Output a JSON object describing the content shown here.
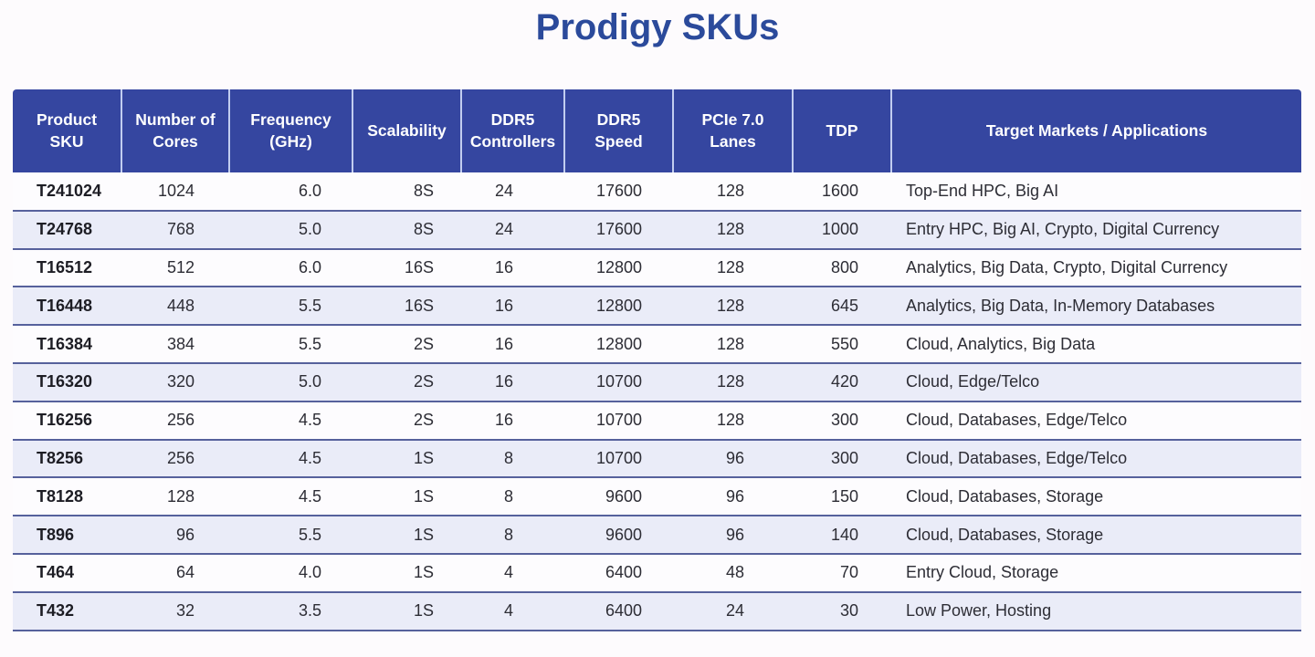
{
  "title": "Prodigy SKUs",
  "colors": {
    "title_text": "#2b4a9b",
    "header_bg": "#3546a0",
    "header_text": "#ffffff",
    "header_divider": "#c2cdf0",
    "row_white": "#fdfcfe",
    "row_alt": "#eaecf8",
    "row_border": "#56619c",
    "body_text": "#2d2d35"
  },
  "table": {
    "columns": [
      {
        "id": "product-sku",
        "label": "Product\nSKU"
      },
      {
        "id": "number-of-cores",
        "label": "Number of\nCores"
      },
      {
        "id": "frequency-ghz",
        "label": "Frequency\n(GHz)"
      },
      {
        "id": "scalability",
        "label": "Scalability"
      },
      {
        "id": "ddr5-controllers",
        "label": "DDR5\nControllers"
      },
      {
        "id": "ddr5-speed",
        "label": "DDR5\nSpeed"
      },
      {
        "id": "pcie-7-lanes",
        "label": "PCIe 7.0\nLanes"
      },
      {
        "id": "tdp",
        "label": "TDP"
      },
      {
        "id": "target-markets",
        "label": "Target Markets / Applications"
      }
    ],
    "rows": [
      [
        "T241024",
        "1024",
        "6.0",
        "8S",
        "24",
        "17600",
        "128",
        "1600",
        "Top-End HPC, Big AI"
      ],
      [
        "T24768",
        "768",
        "5.0",
        "8S",
        "24",
        "17600",
        "128",
        "1000",
        "Entry HPC, Big AI, Crypto, Digital Currency"
      ],
      [
        "T16512",
        "512",
        "6.0",
        "16S",
        "16",
        "12800",
        "128",
        "800",
        "Analytics, Big Data, Crypto, Digital Currency"
      ],
      [
        "T16448",
        "448",
        "5.5",
        "16S",
        "16",
        "12800",
        "128",
        "645",
        "Analytics, Big Data, In-Memory Databases"
      ],
      [
        "T16384",
        "384",
        "5.5",
        "2S",
        "16",
        "12800",
        "128",
        "550",
        "Cloud, Analytics, Big Data"
      ],
      [
        "T16320",
        "320",
        "5.0",
        "2S",
        "16",
        "10700",
        "128",
        "420",
        "Cloud, Edge/Telco"
      ],
      [
        "T16256",
        "256",
        "4.5",
        "2S",
        "16",
        "10700",
        "128",
        "300",
        "Cloud, Databases, Edge/Telco"
      ],
      [
        "T8256",
        "256",
        "4.5",
        "1S",
        "8",
        "10700",
        "96",
        "300",
        "Cloud, Databases, Edge/Telco"
      ],
      [
        "T8128",
        "128",
        "4.5",
        "1S",
        "8",
        "9600",
        "96",
        "150",
        "Cloud, Databases, Storage"
      ],
      [
        "T896",
        "96",
        "5.5",
        "1S",
        "8",
        "9600",
        "96",
        "140",
        "Cloud, Databases, Storage"
      ],
      [
        "T464",
        "64",
        "4.0",
        "1S",
        "4",
        "6400",
        "48",
        "70",
        "Entry Cloud, Storage"
      ],
      [
        "T432",
        "32",
        "3.5",
        "1S",
        "4",
        "6400",
        "24",
        "30",
        "Low Power, Hosting"
      ]
    ]
  }
}
